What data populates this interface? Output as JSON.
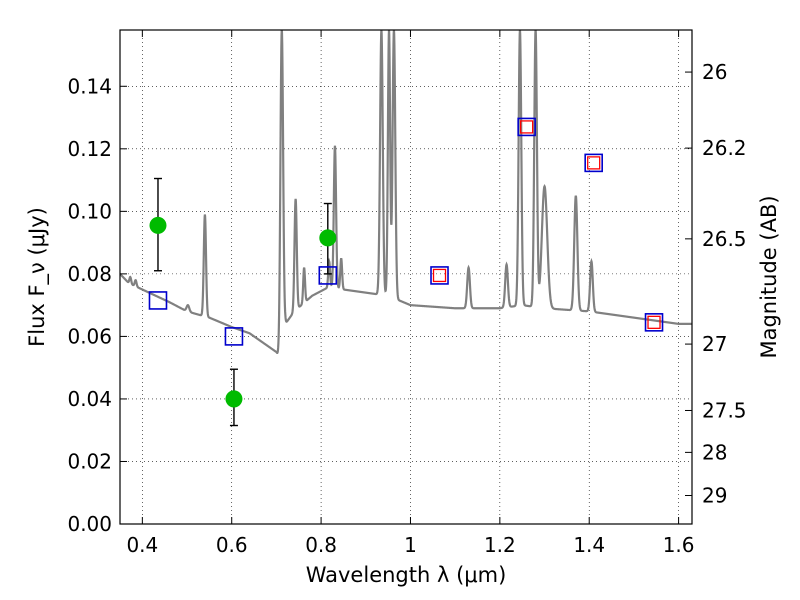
{
  "chart_data": {
    "type": "scatter",
    "xlabel": "Wavelength λ (μm)",
    "ylabel": "Flux F_ν (μJy)",
    "ylabel_right": "Magnitude (AB)",
    "xlim": [
      0.35,
      1.63
    ],
    "ylim": [
      0.0,
      0.158
    ],
    "x_ticks": [
      0.4,
      0.6,
      0.8,
      1.0,
      1.2,
      1.4,
      1.6
    ],
    "x_tick_labels": [
      "0.4",
      "0.6",
      "0.8",
      "1",
      "1.2",
      "1.4",
      "1.6"
    ],
    "y_ticks": [
      0.0,
      0.02,
      0.04,
      0.06,
      0.08,
      0.1,
      0.12,
      0.14
    ],
    "y_tick_labels": [
      "0.00",
      "0.02",
      "0.04",
      "0.06",
      "0.08",
      "0.10",
      "0.12",
      "0.14"
    ],
    "right_ticks": [
      {
        "label": "26",
        "mag": 26.0
      },
      {
        "label": "26.2",
        "mag": 26.2
      },
      {
        "label": "26.5",
        "mag": 26.5
      },
      {
        "label": "27",
        "mag": 27.0
      },
      {
        "label": "27.5",
        "mag": 27.5
      },
      {
        "label": "28",
        "mag": 28.0
      },
      {
        "label": "29",
        "mag": 29.0
      }
    ],
    "grid": true,
    "colors": {
      "sed": "#808080",
      "detection": "#00bb00",
      "model_box": "#0000cc",
      "observed_box": "#ff0000",
      "errorbar": "#000000"
    },
    "series": [
      {
        "name": "model SED",
        "kind": "line",
        "base": [
          [
            0.35,
            0.08
          ],
          [
            0.37,
            0.077
          ],
          [
            0.4,
            0.075
          ],
          [
            0.43,
            0.073
          ],
          [
            0.46,
            0.071
          ],
          [
            0.5,
            0.068
          ],
          [
            0.55,
            0.066
          ],
          [
            0.6,
            0.063
          ],
          [
            0.64,
            0.061
          ],
          [
            0.67,
            0.058
          ],
          [
            0.7,
            0.055
          ],
          [
            0.706,
            0.053
          ],
          [
            0.712,
            0.056
          ],
          [
            0.72,
            0.064
          ],
          [
            0.74,
            0.068
          ],
          [
            0.78,
            0.073
          ],
          [
            0.82,
            0.076
          ],
          [
            0.85,
            0.075
          ],
          [
            0.9,
            0.074
          ],
          [
            0.95,
            0.073
          ],
          [
            1.0,
            0.07
          ],
          [
            1.1,
            0.069
          ],
          [
            1.2,
            0.069
          ],
          [
            1.25,
            0.07
          ],
          [
            1.3,
            0.069
          ],
          [
            1.4,
            0.068
          ],
          [
            1.5,
            0.066
          ],
          [
            1.6,
            0.064
          ],
          [
            1.63,
            0.064
          ]
        ],
        "lines": [
          {
            "x": 0.373,
            "peak": 0.079,
            "width": 0.002
          },
          {
            "x": 0.385,
            "peak": 0.078,
            "width": 0.002
          },
          {
            "x": 0.502,
            "peak": 0.07,
            "width": 0.003
          },
          {
            "x": 0.54,
            "peak": 0.099,
            "width": 0.0025
          },
          {
            "x": 0.712,
            "peak": 0.158,
            "width": 0.003
          },
          {
            "x": 0.743,
            "peak": 0.104,
            "width": 0.0025
          },
          {
            "x": 0.762,
            "peak": 0.082,
            "width": 0.002
          },
          {
            "x": 0.818,
            "peak": 0.084,
            "width": 0.002
          },
          {
            "x": 0.831,
            "peak": 0.121,
            "width": 0.0025
          },
          {
            "x": 0.845,
            "peak": 0.085,
            "width": 0.002
          },
          {
            "x": 0.935,
            "peak": 0.158,
            "width": 0.003
          },
          {
            "x": 0.952,
            "peak": 0.158,
            "width": 0.0025
          },
          {
            "x": 0.963,
            "peak": 0.158,
            "width": 0.003
          },
          {
            "x": 1.13,
            "peak": 0.082,
            "width": 0.003
          },
          {
            "x": 1.215,
            "peak": 0.083,
            "width": 0.003
          },
          {
            "x": 1.245,
            "peak": 0.158,
            "width": 0.003
          },
          {
            "x": 1.28,
            "peak": 0.158,
            "width": 0.003
          },
          {
            "x": 1.3,
            "peak": 0.108,
            "width": 0.006
          },
          {
            "x": 1.37,
            "peak": 0.105,
            "width": 0.0035
          },
          {
            "x": 1.405,
            "peak": 0.084,
            "width": 0.003
          }
        ]
      },
      {
        "name": "detections",
        "kind": "points_with_errors",
        "points": [
          {
            "x": 0.435,
            "y": 0.0955,
            "ylow": 0.081,
            "yhigh": 0.1105
          },
          {
            "x": 0.605,
            "y": 0.04,
            "ylow": 0.0315,
            "yhigh": 0.0495
          },
          {
            "x": 0.815,
            "y": 0.0915,
            "ylow": 0.08,
            "yhigh": 0.1025
          }
        ]
      },
      {
        "name": "model photometry",
        "kind": "squares",
        "points": [
          {
            "x": 0.435,
            "y": 0.0715
          },
          {
            "x": 0.605,
            "y": 0.06
          },
          {
            "x": 0.815,
            "y": 0.0795
          },
          {
            "x": 1.065,
            "y": 0.0795
          },
          {
            "x": 1.26,
            "y": 0.127
          },
          {
            "x": 1.41,
            "y": 0.1155
          },
          {
            "x": 1.545,
            "y": 0.0645
          }
        ]
      },
      {
        "name": "observed photometry",
        "kind": "small_squares",
        "points": [
          {
            "x": 1.065,
            "y": 0.0795
          },
          {
            "x": 1.26,
            "y": 0.127
          },
          {
            "x": 1.41,
            "y": 0.1155
          },
          {
            "x": 1.545,
            "y": 0.0645
          }
        ]
      }
    ]
  }
}
